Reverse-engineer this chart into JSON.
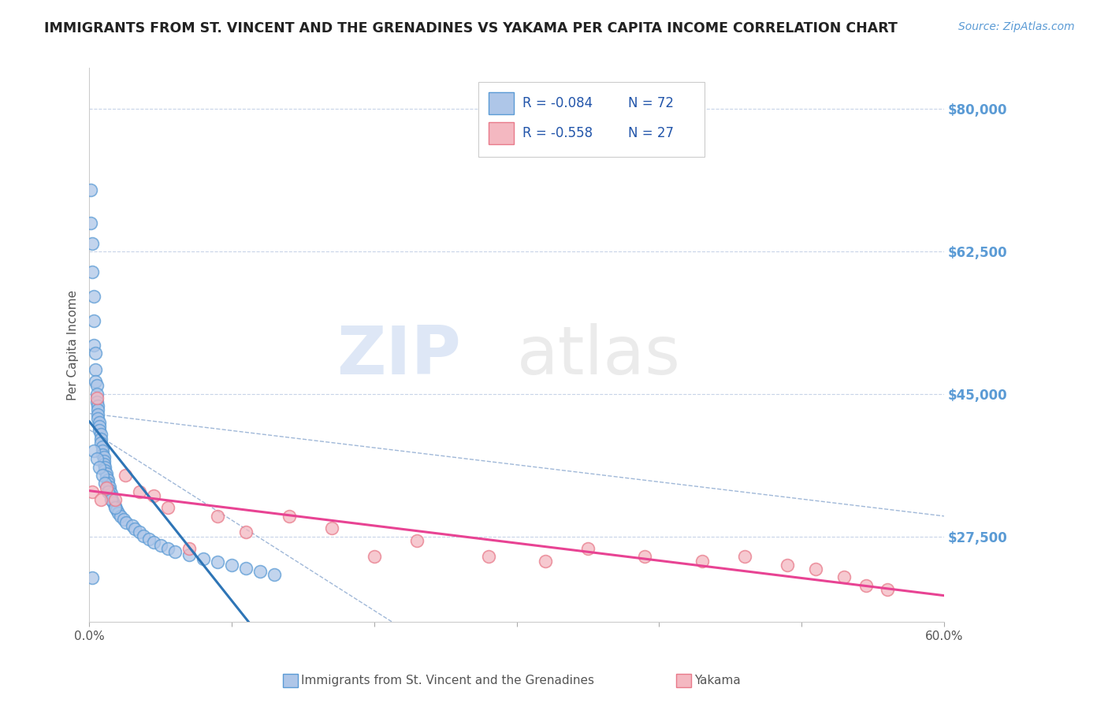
{
  "title": "IMMIGRANTS FROM ST. VINCENT AND THE GRENADINES VS YAKAMA PER CAPITA INCOME CORRELATION CHART",
  "source": "Source: ZipAtlas.com",
  "ylabel": "Per Capita Income",
  "ytick_labels": [
    "$80,000",
    "$62,500",
    "$45,000",
    "$27,500"
  ],
  "ytick_values": [
    80000,
    62500,
    45000,
    27500
  ],
  "legend_blue_r": "-0.084",
  "legend_blue_n": "72",
  "legend_pink_r": "-0.558",
  "legend_pink_n": "27",
  "watermark_zip": "ZIP",
  "watermark_atlas": "atlas",
  "blue_face": "#AEC6E8",
  "blue_edge": "#5B9BD5",
  "pink_face": "#F4B8C1",
  "pink_edge": "#E87A8A",
  "blue_line_color": "#2E75B6",
  "pink_line_color": "#E84393",
  "dash_color": "#A0B8D8",
  "grid_color": "#C8D4E8",
  "title_color": "#222222",
  "source_color": "#5B9BD5",
  "ylabel_color": "#555555",
  "tick_color": "#5B9BD5",
  "legend_text_color": "#2255AA",
  "bottom_label_color": "#555555",
  "xlim": [
    0.0,
    0.6
  ],
  "ylim": [
    17000,
    85000
  ],
  "blue_x": [
    0.001,
    0.001,
    0.002,
    0.002,
    0.003,
    0.003,
    0.003,
    0.004,
    0.004,
    0.004,
    0.005,
    0.005,
    0.005,
    0.006,
    0.006,
    0.006,
    0.006,
    0.007,
    0.007,
    0.007,
    0.008,
    0.008,
    0.008,
    0.009,
    0.009,
    0.009,
    0.01,
    0.01,
    0.01,
    0.011,
    0.011,
    0.012,
    0.012,
    0.013,
    0.013,
    0.014,
    0.014,
    0.015,
    0.015,
    0.016,
    0.017,
    0.018,
    0.019,
    0.02,
    0.022,
    0.024,
    0.026,
    0.03,
    0.032,
    0.035,
    0.038,
    0.042,
    0.045,
    0.05,
    0.055,
    0.06,
    0.07,
    0.08,
    0.09,
    0.1,
    0.11,
    0.12,
    0.13,
    0.002,
    0.003,
    0.005,
    0.007,
    0.009,
    0.011,
    0.013,
    0.015,
    0.018
  ],
  "blue_y": [
    70000,
    66000,
    63500,
    60000,
    57000,
    54000,
    51000,
    50000,
    48000,
    46500,
    46000,
    45000,
    44000,
    43500,
    43000,
    42500,
    42000,
    41500,
    41000,
    40500,
    40000,
    39500,
    39000,
    38500,
    38000,
    37500,
    37200,
    36800,
    36400,
    36000,
    35600,
    35200,
    34800,
    34400,
    34000,
    33600,
    33200,
    32800,
    32400,
    32000,
    31600,
    31200,
    30800,
    30400,
    30000,
    29600,
    29200,
    28800,
    28400,
    28000,
    27600,
    27200,
    26800,
    26400,
    26000,
    25600,
    25200,
    24800,
    24400,
    24000,
    23600,
    23200,
    22800,
    22400,
    38000,
    37000,
    36000,
    35000,
    34000,
    33000,
    32000,
    31000
  ],
  "pink_x": [
    0.002,
    0.005,
    0.008,
    0.012,
    0.018,
    0.025,
    0.035,
    0.045,
    0.055,
    0.07,
    0.09,
    0.11,
    0.14,
    0.17,
    0.2,
    0.23,
    0.28,
    0.32,
    0.35,
    0.39,
    0.43,
    0.46,
    0.49,
    0.51,
    0.53,
    0.545,
    0.56
  ],
  "pink_y": [
    33000,
    44500,
    32000,
    33500,
    32000,
    35000,
    33000,
    32500,
    31000,
    26000,
    30000,
    28000,
    30000,
    28500,
    25000,
    27000,
    25000,
    24500,
    26000,
    25000,
    24500,
    25000,
    24000,
    23500,
    22500,
    21500,
    21000
  ]
}
